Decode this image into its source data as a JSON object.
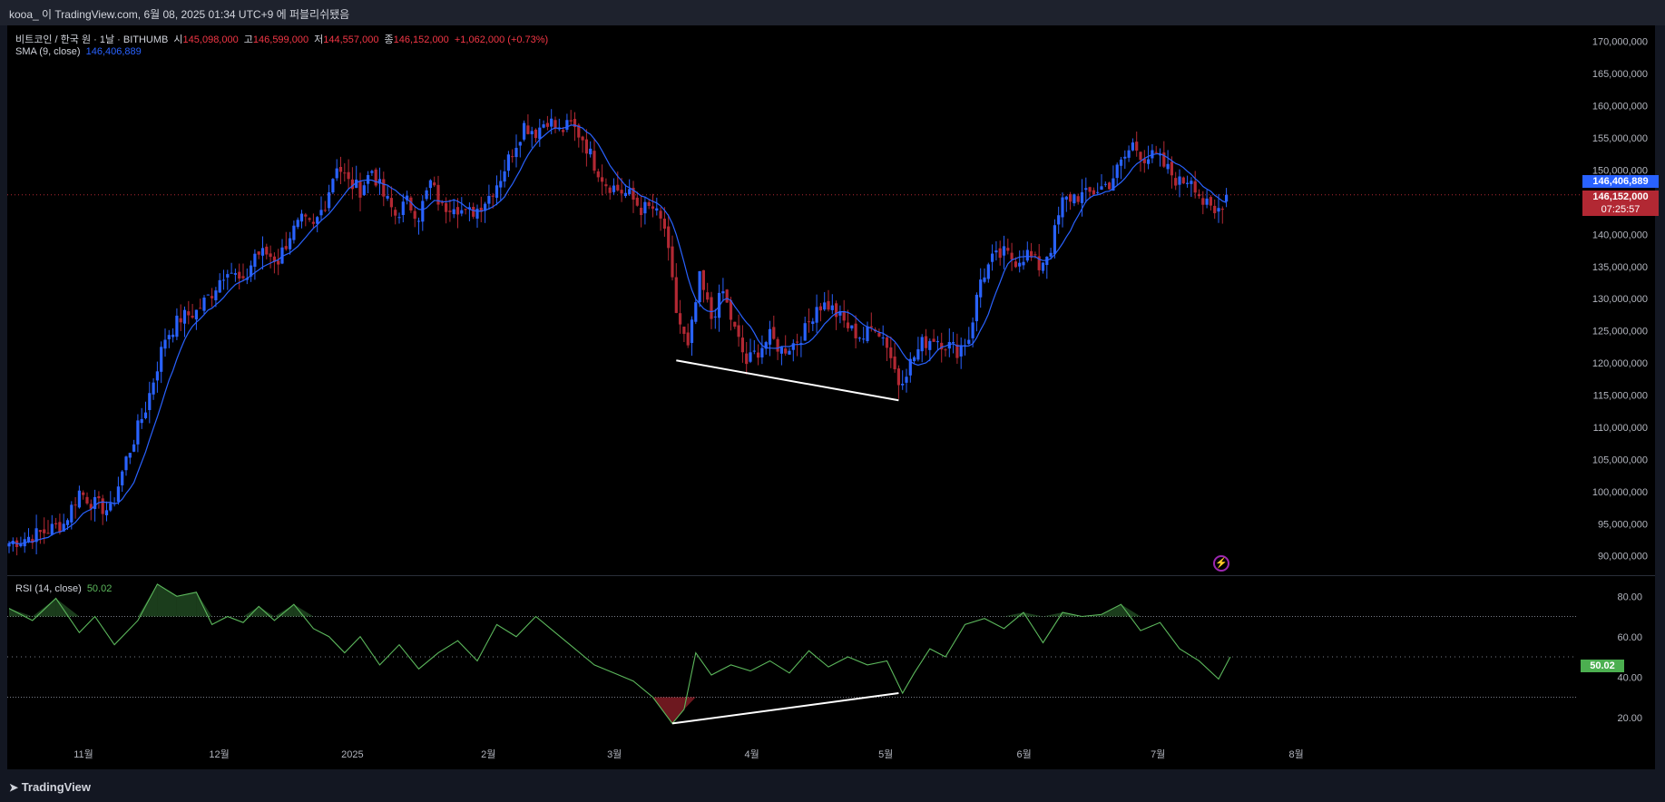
{
  "header": {
    "title": "kooa_ 이 TradingView.com, 6월 08, 2025 01:34 UTC+9 에 퍼블리쉬됐음"
  },
  "legend": {
    "symbol": "비트코인 / 한국 원 · 1날 · BITHUMB",
    "o_label": "시",
    "o": "145,098,000",
    "h_label": "고",
    "h": "146,599,000",
    "l_label": "저",
    "l": "144,557,000",
    "c_label": "종",
    "c": "146,152,000",
    "chg": "+1,062,000 (+0.73%)",
    "sma_label": "SMA (9, close)",
    "sma_value": "146,406,889",
    "rsi_label": "RSI (14, close)",
    "rsi_value": "50.02"
  },
  "price_tags": {
    "sma": "146,406,889",
    "last": "146,152,000",
    "countdown": "07:25:57",
    "rsi": "50.02"
  },
  "footer": {
    "logo": "TradingView"
  },
  "colors": {
    "up": "#2962ff",
    "down": "#b22833",
    "sma": "#2962ff",
    "rsi": "#5cb85c",
    "bg": "#000000"
  },
  "chart_data": [
    {
      "type": "candlestick",
      "title": "비트코인 / 한국 원 · 1날 · BITHUMB",
      "ylim": [
        87000000,
        172500000
      ],
      "yticks": [
        "170,000,000",
        "165,000,000",
        "160,000,000",
        "155,000,000",
        "150,000,000",
        "145,000,000",
        "140,000,000",
        "135,000,000",
        "130,000,000",
        "125,000,000",
        "120,000,000",
        "115,000,000",
        "110,000,000",
        "105,000,000",
        "100,000,000",
        "95,000,000",
        "90,000,000"
      ],
      "xticks": [
        "11월",
        "12월",
        "2025",
        "2월",
        "3월",
        "4월",
        "5월",
        "6월",
        "7월",
        "8월"
      ],
      "series": [
        {
          "name": "SMA (9, close)",
          "last": 146406889
        }
      ],
      "close_path": [
        [
          0,
          92000000
        ],
        [
          8,
          93500000
        ],
        [
          14,
          95000000
        ],
        [
          18,
          100000000
        ],
        [
          22,
          98000000
        ],
        [
          26,
          97000000
        ],
        [
          30,
          105000000
        ],
        [
          35,
          113000000
        ],
        [
          40,
          124000000
        ],
        [
          44,
          127000000
        ],
        [
          48,
          128000000
        ],
        [
          52,
          131000000
        ],
        [
          56,
          135000000
        ],
        [
          60,
          132000000
        ],
        [
          63,
          137000000
        ],
        [
          66,
          137000000
        ],
        [
          69,
          136000000
        ],
        [
          72,
          140000000
        ],
        [
          75,
          142000000
        ],
        [
          78,
          141000000
        ],
        [
          81,
          145000000
        ],
        [
          84,
          151000000
        ],
        [
          87,
          148000000
        ],
        [
          90,
          147000000
        ],
        [
          93,
          150000000
        ],
        [
          96,
          146000000
        ],
        [
          99,
          143000000
        ],
        [
          102,
          145000000
        ],
        [
          105,
          143000000
        ],
        [
          108,
          148000000
        ],
        [
          111,
          144000000
        ],
        [
          114,
          145000000
        ],
        [
          117,
          143000000
        ],
        [
          120,
          144000000
        ],
        [
          123,
          146000000
        ],
        [
          126,
          149000000
        ],
        [
          129,
          153000000
        ],
        [
          132,
          157000000
        ],
        [
          135,
          156000000
        ],
        [
          138,
          158000000
        ],
        [
          141,
          156000000
        ],
        [
          144,
          157000000
        ],
        [
          147,
          155000000
        ],
        [
          150,
          151000000
        ],
        [
          153,
          148000000
        ],
        [
          156,
          147000000
        ],
        [
          159,
          146000000
        ],
        [
          162,
          144000000
        ],
        [
          165,
          144000000
        ],
        [
          168,
          141000000
        ],
        [
          171,
          128000000
        ],
        [
          174,
          122000000
        ],
        [
          177,
          133000000
        ],
        [
          180,
          127000000
        ],
        [
          183,
          131000000
        ],
        [
          186,
          125000000
        ],
        [
          189,
          120000000
        ],
        [
          192,
          122000000
        ],
        [
          195,
          124000000
        ],
        [
          198,
          122000000
        ],
        [
          201,
          123000000
        ],
        [
          204,
          125000000
        ],
        [
          207,
          129000000
        ],
        [
          210,
          129000000
        ],
        [
          213,
          127000000
        ],
        [
          216,
          125000000
        ],
        [
          219,
          124000000
        ],
        [
          222,
          126000000
        ],
        [
          225,
          123000000
        ],
        [
          228,
          117000000
        ],
        [
          231,
          120000000
        ],
        [
          234,
          123000000
        ],
        [
          237,
          124000000
        ],
        [
          240,
          123000000
        ],
        [
          243,
          122000000
        ],
        [
          246,
          124000000
        ],
        [
          249,
          133000000
        ],
        [
          252,
          136000000
        ],
        [
          255,
          137000000
        ],
        [
          258,
          136000000
        ],
        [
          261,
          137000000
        ],
        [
          264,
          135000000
        ],
        [
          267,
          138000000
        ],
        [
          270,
          145000000
        ],
        [
          273,
          146000000
        ],
        [
          276,
          146000000
        ],
        [
          279,
          147000000
        ],
        [
          282,
          148000000
        ],
        [
          285,
          151000000
        ],
        [
          288,
          154000000
        ],
        [
          291,
          152000000
        ],
        [
          294,
          152000000
        ],
        [
          297,
          150000000
        ],
        [
          300,
          148000000
        ],
        [
          303,
          149000000
        ],
        [
          306,
          145000000
        ],
        [
          309,
          143000000
        ],
        [
          312,
          146000000
        ]
      ]
    },
    {
      "type": "line",
      "title": "RSI (14, close)",
      "ylim": [
        10,
        90
      ],
      "yticks": [
        "80.00",
        "60.00",
        "40.00",
        "20.00"
      ],
      "bands": [
        70,
        50,
        30
      ],
      "x": [
        0,
        6,
        12,
        18,
        22,
        27,
        33,
        38,
        43,
        48,
        52,
        56,
        60,
        64,
        68,
        73,
        78,
        82,
        86,
        90,
        95,
        100,
        105,
        110,
        115,
        120,
        125,
        130,
        135,
        140,
        145,
        150,
        155,
        160,
        165,
        170,
        173,
        176,
        180,
        185,
        190,
        195,
        200,
        205,
        210,
        215,
        220,
        225,
        229,
        232,
        236,
        240,
        245,
        250,
        255,
        260,
        265,
        270,
        275,
        280,
        285,
        290,
        295,
        300,
        305,
        310,
        313
      ],
      "values": [
        74,
        68,
        79,
        62,
        70,
        56,
        68,
        86,
        80,
        82,
        66,
        70,
        67,
        75,
        68,
        76,
        64,
        60,
        52,
        60,
        46,
        56,
        44,
        52,
        58,
        48,
        66,
        60,
        70,
        62,
        54,
        46,
        42,
        38,
        30,
        17,
        24,
        52,
        41,
        46,
        43,
        48,
        42,
        53,
        45,
        50,
        46,
        48,
        32,
        42,
        54,
        50,
        66,
        69,
        64,
        72,
        57,
        72,
        70,
        71,
        76,
        63,
        67,
        54,
        48,
        39,
        50
      ]
    }
  ]
}
